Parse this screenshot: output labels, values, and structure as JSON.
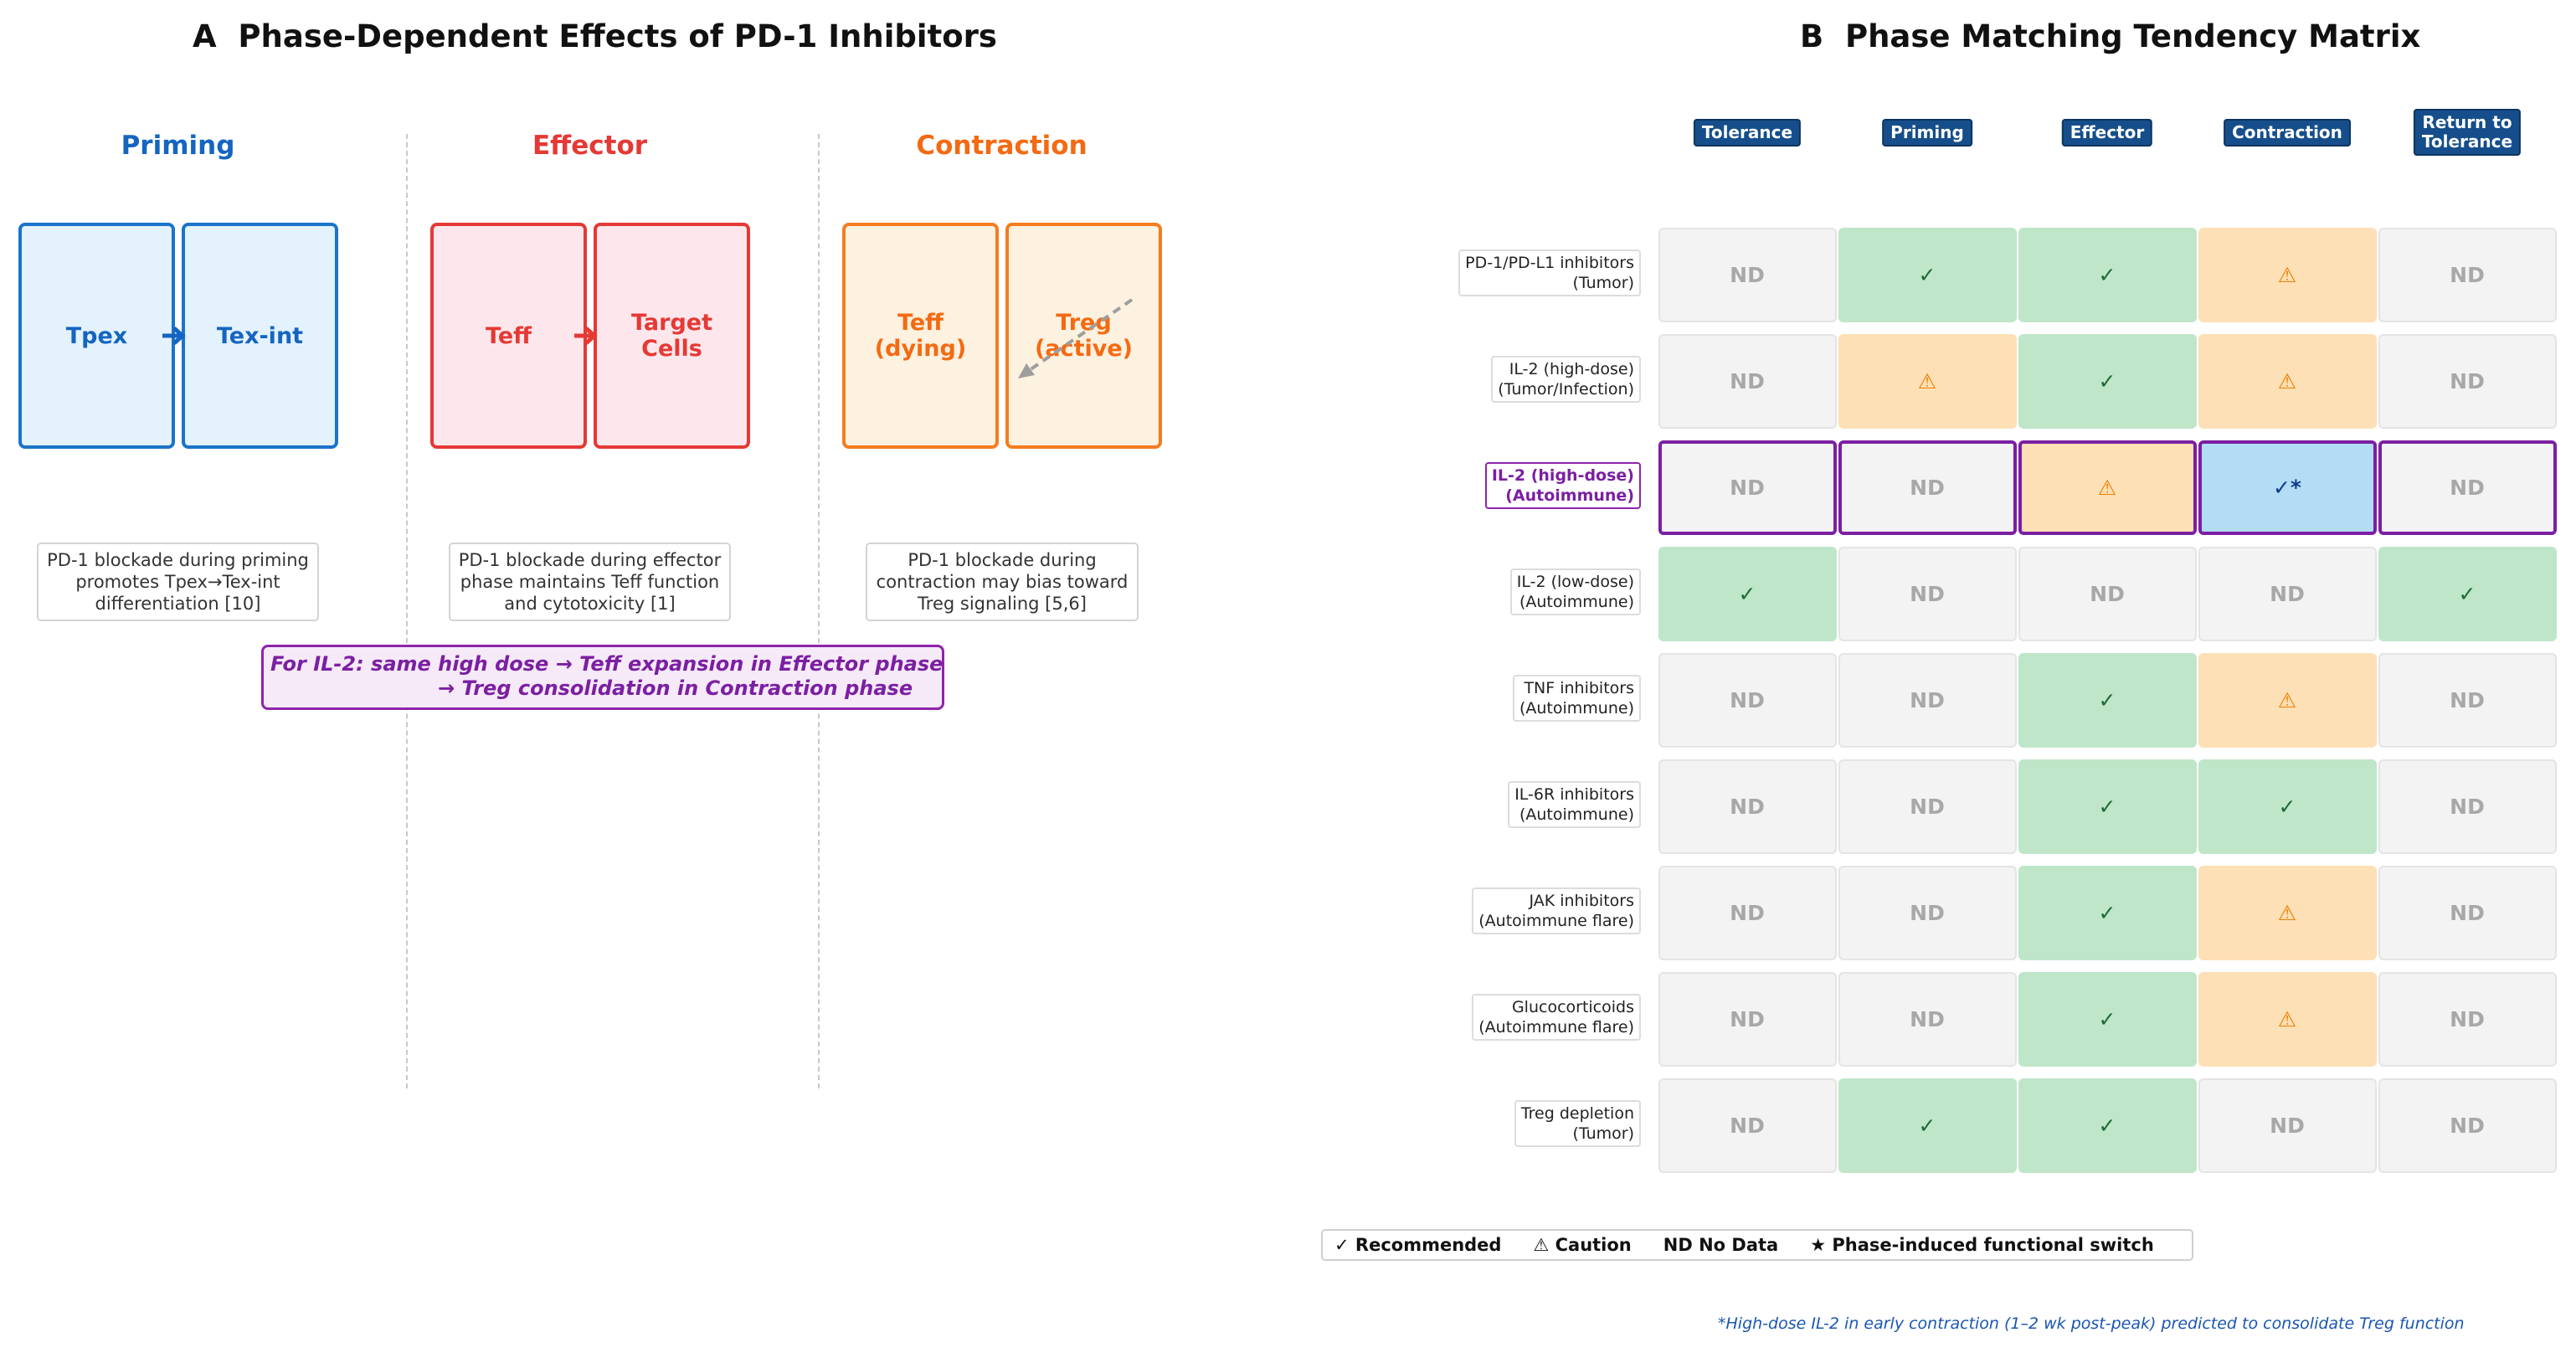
{
  "panel_a": {
    "title": "A  Phase-Dependent Effects of PD-1 Inhibitors",
    "phases": [
      {
        "title": "Priming",
        "color": "#1565c0",
        "box_left": "Tpex",
        "box_right": "Tex-int",
        "note": "PD-1 blockade during priming\npromotes Tpex→Tex-int\ndifferentiation [10]"
      },
      {
        "title": "Effector",
        "color": "#e53935",
        "box_left": "Teff",
        "box_right": "Target\nCells",
        "note": "PD-1 blockade during effector\nphase maintains Teff function\nand cytotoxicity [1]"
      },
      {
        "title": "Contraction",
        "color": "#f46a12",
        "box_left": "Teff\n(dying)",
        "box_right": "Treg\n(active)",
        "note": "PD-1 blockade during\ncontraction may bias toward\nTreg signaling [5,6]"
      }
    ],
    "il2_note_line1": "For IL-2: same high dose → Teff expansion in Effector phase",
    "il2_note_line2": "→ Treg consolidation in Contraction phase"
  },
  "panel_b": {
    "title": "B  Phase Matching Tendency Matrix",
    "columns": [
      "Tolerance",
      "Priming",
      "Effector",
      "Contraction",
      "Return to\nTolerance"
    ],
    "rows": [
      {
        "label": "PD-1/PD-L1 inhibitors\n(Tumor)",
        "highlight": false,
        "cells": [
          "nd",
          "rec",
          "rec",
          "cau",
          "nd"
        ]
      },
      {
        "label": "IL-2 (high-dose)\n(Tumor/Infection)",
        "highlight": false,
        "cells": [
          "nd",
          "cau",
          "rec",
          "cau",
          "nd"
        ]
      },
      {
        "label": "IL-2 (high-dose)\n(Autoimmune)",
        "highlight": true,
        "cells": [
          "nd",
          "nd",
          "cau",
          "sw",
          "nd"
        ]
      },
      {
        "label": "IL-2 (low-dose)\n(Autoimmune)",
        "highlight": false,
        "cells": [
          "rec",
          "nd",
          "nd",
          "nd",
          "rec"
        ]
      },
      {
        "label": "TNF inhibitors\n(Autoimmune)",
        "highlight": false,
        "cells": [
          "nd",
          "nd",
          "rec",
          "cau",
          "nd"
        ]
      },
      {
        "label": "IL-6R inhibitors\n(Autoimmune)",
        "highlight": false,
        "cells": [
          "nd",
          "nd",
          "rec",
          "rec",
          "nd"
        ]
      },
      {
        "label": "JAK inhibitors\n(Autoimmune flare)",
        "highlight": false,
        "cells": [
          "nd",
          "nd",
          "rec",
          "cau",
          "nd"
        ]
      },
      {
        "label": "Glucocorticoids\n(Autoimmune flare)",
        "highlight": false,
        "cells": [
          "nd",
          "nd",
          "rec",
          "cau",
          "nd"
        ]
      },
      {
        "label": "Treg depletion\n(Tumor)",
        "highlight": false,
        "cells": [
          "nd",
          "rec",
          "rec",
          "nd",
          "nd"
        ]
      }
    ],
    "symbols": {
      "nd": "ND",
      "rec": "✓",
      "cau": "⚠",
      "sw": "✓*"
    },
    "legend": [
      "✓ Recommended",
      "⚠ Caution",
      "ND No Data",
      "★ Phase-induced functional switch"
    ],
    "footnote": "*High-dose IL-2 in early contraction (1–2 wk post-peak) predicted to consolidate Treg function"
  }
}
